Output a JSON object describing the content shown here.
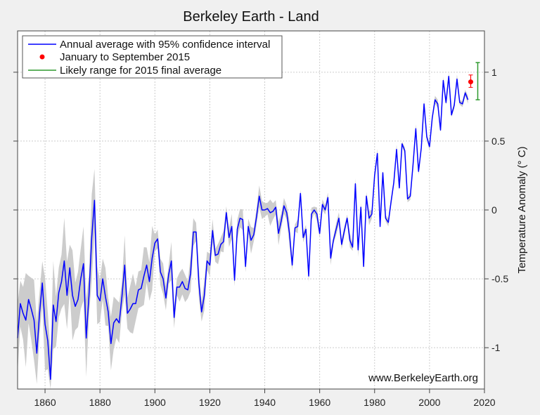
{
  "chart_data": {
    "type": "line",
    "title": "Berkeley Earth - Land",
    "xlabel": "",
    "ylabel": "Temperature Anomaly (° C)",
    "xlim": [
      1850,
      2020
    ],
    "ylim": [
      -1.3,
      1.3
    ],
    "grid": true,
    "legend_position": "top-left",
    "x_ticks": [
      1860,
      1880,
      1900,
      1920,
      1940,
      1960,
      1980,
      2000,
      2020
    ],
    "x_tick_labels": [
      "1860",
      "1880",
      "1900",
      "1920",
      "1940",
      "1960",
      "1980",
      "2000",
      "2020"
    ],
    "y_ticks": [
      -1,
      -0.5,
      0,
      0.5,
      1
    ],
    "y_tick_labels": [
      "-1",
      "-0.5",
      "0",
      "0.5",
      "1"
    ],
    "watermark": "www.BerkeleyEarth.org",
    "colors": {
      "line": "#0000ff",
      "band": "#cccccc",
      "point": "#ff0000",
      "range": "#2e9a2e",
      "background": "#f0f0f0"
    },
    "series": [
      {
        "name": "Annual average with 95% confidence interval",
        "start_year": 1850,
        "values": [
          -0.93,
          -0.68,
          -0.75,
          -0.8,
          -0.65,
          -0.72,
          -0.8,
          -1.04,
          -0.75,
          -0.53,
          -0.83,
          -0.95,
          -1.23,
          -0.69,
          -0.81,
          -0.6,
          -0.52,
          -0.37,
          -0.62,
          -0.42,
          -0.62,
          -0.7,
          -0.65,
          -0.5,
          -0.39,
          -0.93,
          -0.62,
          -0.2,
          0.07,
          -0.62,
          -0.66,
          -0.5,
          -0.63,
          -0.74,
          -0.97,
          -0.82,
          -0.79,
          -0.82,
          -0.63,
          -0.4,
          -0.75,
          -0.72,
          -0.68,
          -0.68,
          -0.58,
          -0.57,
          -0.48,
          -0.4,
          -0.52,
          -0.35,
          -0.24,
          -0.21,
          -0.45,
          -0.5,
          -0.64,
          -0.47,
          -0.37,
          -0.78,
          -0.56,
          -0.56,
          -0.52,
          -0.57,
          -0.58,
          -0.46,
          -0.16,
          -0.16,
          -0.53,
          -0.74,
          -0.62,
          -0.37,
          -0.4,
          -0.15,
          -0.33,
          -0.32,
          -0.25,
          -0.23,
          -0.02,
          -0.2,
          -0.12,
          -0.51,
          -0.14,
          -0.06,
          -0.07,
          -0.41,
          -0.12,
          -0.22,
          -0.18,
          -0.05,
          0.1,
          0.0,
          0.0,
          0.01,
          -0.02,
          -0.01,
          0.02,
          -0.17,
          -0.08,
          0.03,
          -0.02,
          -0.17,
          -0.4,
          -0.13,
          -0.12,
          0.12,
          -0.2,
          -0.14,
          -0.48,
          -0.03,
          0.0,
          -0.03,
          -0.17,
          0.04,
          0.0,
          0.09,
          -0.35,
          -0.22,
          -0.14,
          -0.06,
          -0.25,
          -0.15,
          -0.06,
          -0.22,
          -0.27,
          0.19,
          -0.29,
          0.02,
          -0.41,
          0.1,
          -0.06,
          -0.03,
          0.25,
          0.41,
          -0.12,
          0.27,
          -0.06,
          -0.09,
          0.06,
          0.2,
          0.44,
          0.16,
          0.48,
          0.43,
          0.08,
          0.1,
          0.33,
          0.59,
          0.28,
          0.45,
          0.77,
          0.53,
          0.46,
          0.67,
          0.8,
          0.77,
          0.58,
          0.94,
          0.78,
          0.97,
          0.69,
          0.76,
          0.95,
          0.78,
          0.77,
          0.85,
          0.8
        ],
        "confidence_interval": [
          {
            "from": 1850,
            "to": 1879,
            "halfwidth": 0.25
          },
          {
            "from": 1880,
            "to": 1899,
            "halfwidth": 0.17
          },
          {
            "from": 1900,
            "to": 1919,
            "halfwidth": 0.1
          },
          {
            "from": 1920,
            "to": 1949,
            "halfwidth": 0.07
          },
          {
            "from": 1950,
            "to": 1979,
            "halfwidth": 0.04
          },
          {
            "from": 1980,
            "to": 2014,
            "halfwidth": 0.025
          }
        ]
      },
      {
        "name": "January to September 2015",
        "x": 2015,
        "y": 0.93,
        "error": [
          0.89,
          0.98
        ]
      },
      {
        "name": "Likely range for 2015 final average",
        "range": [
          0.8,
          1.07
        ]
      }
    ]
  }
}
